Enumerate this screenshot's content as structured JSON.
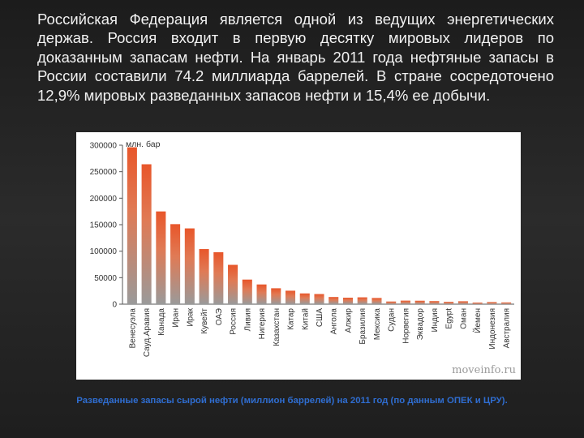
{
  "intro_text": "Российская Федерация является одной из ведущих энергетических держав. Россия входит в первую десятку мировых лидеров по доказанным запасам нефти. На январь 2011 года нефтяные запасы в России составили 74.2 миллиарда баррелей. В стране сосредоточено 12,9% мировых разведанных запасов нефти и 15,4% ее добычи.",
  "caption": "Разведанные запасы сырой нефти (миллион баррелей) на 2011 год (по данным ОПЕК и ЦРУ).",
  "watermark": "moveinfo.ru",
  "colors": {
    "bar_top": "#e8562a",
    "bar_bottom": "#9a9a9a",
    "caption": "#2f6dd0"
  },
  "chart_data": {
    "type": "bar",
    "ylabel": "млн. бар",
    "ylim": [
      0,
      300000
    ],
    "yticks": [
      "0",
      "50000",
      "100000",
      "150000",
      "200000",
      "250000",
      "300000"
    ],
    "categories": [
      "Венесуэла",
      "Сауд.Аравия",
      "Канада",
      "Иран",
      "Ирак",
      "Кувейт",
      "ОАЭ",
      "Россия",
      "Ливия",
      "Нигерия",
      "Казахстан",
      "Катар",
      "Китай",
      "США",
      "Ангола",
      "Алжир",
      "Бразилия",
      "Мексика",
      "Судан",
      "Норвегия",
      "Эквадор",
      "Индия",
      "Egypt",
      "Оман",
      "Йемен",
      "Индонезия",
      "Австралия"
    ],
    "values": [
      296000,
      264000,
      175000,
      151000,
      143000,
      104000,
      98000,
      74200,
      46400,
      37200,
      30000,
      25400,
      20300,
      19100,
      13500,
      12200,
      12900,
      11700,
      5000,
      6700,
      6500,
      5800,
      4400,
      5500,
      3000,
      4000,
      3300
    ]
  }
}
